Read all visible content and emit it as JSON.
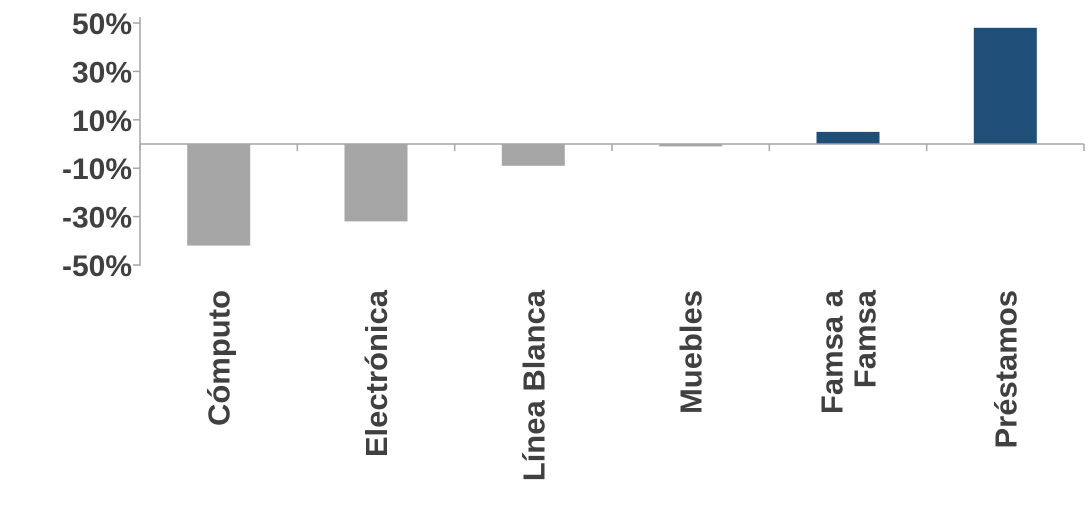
{
  "chart_data": {
    "type": "bar",
    "categories": [
      [
        "Cómputo"
      ],
      [
        "Electrónica"
      ],
      [
        "Línea Blanca"
      ],
      [
        "Muebles"
      ],
      [
        "Famsa a",
        "Famsa"
      ],
      [
        "Préstamos"
      ]
    ],
    "values": [
      -42,
      -32,
      -9,
      -1,
      5,
      48
    ],
    "ylim": [
      -50,
      50
    ],
    "yticks": [
      50,
      30,
      10,
      -10,
      -30,
      -50
    ],
    "ytick_labels": [
      "50%",
      "30%",
      "10%",
      "-10%",
      "-30%",
      "-50%"
    ],
    "title": "",
    "xlabel": "",
    "ylabel": "",
    "grid": false,
    "legend": "none",
    "colors": {
      "negative": "#a6a6a6",
      "positive": "#1f4e79",
      "axis": "#a6a6a6",
      "text": "#404040"
    }
  }
}
